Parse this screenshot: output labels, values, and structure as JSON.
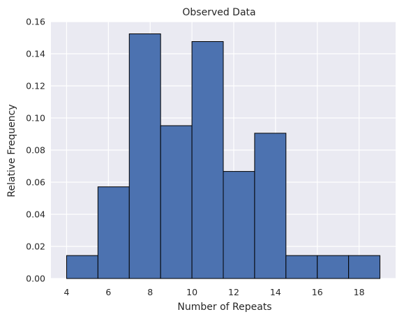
{
  "chart_data": {
    "type": "bar",
    "title": "Observed Data",
    "xlabel": "Number of Repeats",
    "ylabel": "Relative Frequency",
    "xlim": [
      3.25,
      19.75
    ],
    "ylim": [
      0,
      0.16
    ],
    "xticks": [
      4,
      6,
      8,
      10,
      12,
      14,
      16,
      18
    ],
    "yticks": [
      0.0,
      0.02,
      0.04,
      0.06,
      0.08,
      0.1,
      0.12,
      0.14,
      0.16
    ],
    "grid": true,
    "bins": [
      {
        "start": 4.0,
        "end": 5.5,
        "value": 0.0143
      },
      {
        "start": 5.5,
        "end": 7.0,
        "value": 0.0571
      },
      {
        "start": 7.0,
        "end": 8.5,
        "value": 0.1524
      },
      {
        "start": 8.5,
        "end": 10.0,
        "value": 0.0952
      },
      {
        "start": 10.0,
        "end": 11.5,
        "value": 0.1476
      },
      {
        "start": 11.5,
        "end": 13.0,
        "value": 0.0667
      },
      {
        "start": 13.0,
        "end": 14.5,
        "value": 0.0905
      },
      {
        "start": 14.5,
        "end": 16.0,
        "value": 0.0143
      },
      {
        "start": 16.0,
        "end": 17.5,
        "value": 0.0143
      },
      {
        "start": 17.5,
        "end": 19.0,
        "value": 0.0143
      }
    ],
    "colors": {
      "background": "#eaeaf2",
      "grid": "#ffffff",
      "bar_fill": "#4c72b0",
      "bar_edge": "#000000"
    }
  }
}
